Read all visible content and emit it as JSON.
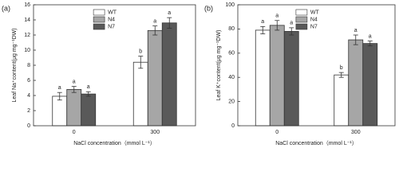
{
  "chart_data": [
    {
      "type": "bar",
      "panel": "(a)",
      "y_label": "Leaf Na⁺content(μg mg⁻¹DW)",
      "x_label": "NaCl concentration（mmol L⁻¹）",
      "categories": [
        "0",
        "300"
      ],
      "series": [
        {
          "name": "WT",
          "color": "#ffffff",
          "values": [
            3.9,
            8.4
          ],
          "errors": [
            0.5,
            0.8
          ],
          "letters": [
            "a",
            "b"
          ]
        },
        {
          "name": "N4",
          "color": "#a6a6a6",
          "values": [
            4.8,
            12.6
          ],
          "errors": [
            0.4,
            0.6
          ],
          "letters": [
            "a",
            "a"
          ]
        },
        {
          "name": "N7",
          "color": "#595959",
          "values": [
            4.2,
            13.6
          ],
          "errors": [
            0.3,
            0.7
          ],
          "letters": [
            "a",
            "a"
          ]
        }
      ],
      "ylim": [
        0,
        16
      ],
      "yticks": [
        0,
        2,
        4,
        6,
        8,
        10,
        12,
        14,
        16
      ]
    },
    {
      "type": "bar",
      "panel": "(b)",
      "y_label": "Leaf K⁺content(μg mg⁻¹DW)",
      "x_label": "NaCl concentration（mmol L⁻¹）",
      "categories": [
        "0",
        "300"
      ],
      "series": [
        {
          "name": "WT",
          "color": "#ffffff",
          "values": [
            79,
            42
          ],
          "errors": [
            3,
            2
          ],
          "letters": [
            "a",
            "b"
          ]
        },
        {
          "name": "N4",
          "color": "#a6a6a6",
          "values": [
            83,
            71
          ],
          "errors": [
            4,
            4
          ],
          "letters": [
            "a",
            "a"
          ]
        },
        {
          "name": "N7",
          "color": "#595959",
          "values": [
            78,
            68
          ],
          "errors": [
            3,
            2
          ],
          "letters": [
            "a",
            "a"
          ]
        }
      ],
      "ylim": [
        0,
        100
      ],
      "yticks": [
        0,
        20,
        40,
        60,
        80,
        100
      ]
    }
  ]
}
